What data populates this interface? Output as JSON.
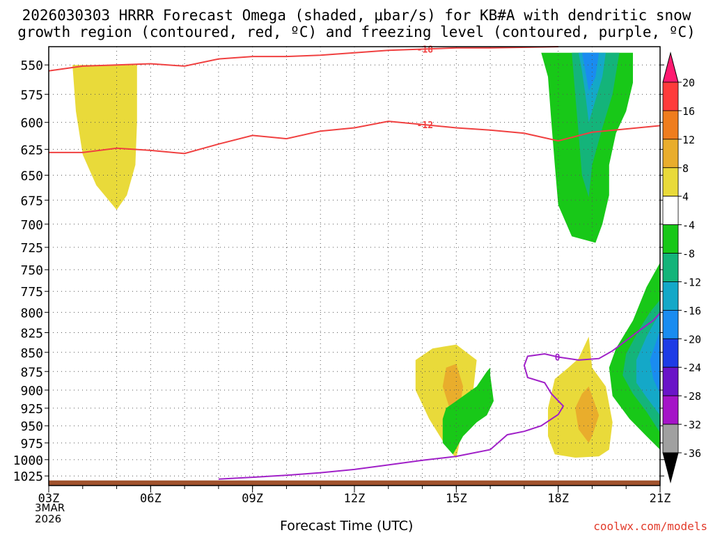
{
  "title_line1": "2026030303 HRRR Forecast Omega (shaded, μbar/s) for KB#A with dendritic snow",
  "title_line2": "growth region (contoured, red, ºC) and freezing level (contoured, purple, ºC)",
  "date_line1": "3MAR",
  "date_line2": "2026",
  "xlabel": "Forecast Time (UTC)",
  "credit": "coolwx.com/models",
  "chart_data": {
    "type": "heatmap",
    "x_unit": "hours after 03Z",
    "xlim": [
      0,
      18
    ],
    "ylim_hpa": [
      1040,
      535
    ],
    "y_ticks": [
      550,
      575,
      600,
      625,
      650,
      675,
      700,
      725,
      750,
      775,
      800,
      825,
      850,
      875,
      900,
      925,
      950,
      975,
      1000,
      1025
    ],
    "x_ticks": [
      {
        "x": 0,
        "label": "03Z"
      },
      {
        "x": 3,
        "label": "06Z"
      },
      {
        "x": 6,
        "label": "09Z"
      },
      {
        "x": 9,
        "label": "12Z"
      },
      {
        "x": 12,
        "label": "15Z"
      },
      {
        "x": 15,
        "label": "18Z"
      },
      {
        "x": 18,
        "label": "21Z"
      }
    ],
    "colorbar": {
      "levels": [
        20,
        16,
        12,
        8,
        4,
        -4,
        -8,
        -12,
        -16,
        -20,
        -24,
        -28,
        -32,
        -36
      ],
      "colors": [
        "#ff1a70",
        "#ff3b3b",
        "#ef7d1e",
        "#e9ad2c",
        "#e9da3a",
        "#ffffff",
        "#18c818",
        "#14b47a",
        "#14a8c8",
        "#1a8cf0",
        "#1e3ce6",
        "#6a14c8",
        "#a514c8",
        "#a0a0a0",
        "#000000"
      ]
    },
    "red_contours": [
      {
        "label": "-18",
        "points": [
          [
            0,
            555
          ],
          [
            1,
            551
          ],
          [
            2,
            550
          ],
          [
            3,
            549
          ],
          [
            4,
            551
          ],
          [
            5,
            545
          ],
          [
            6,
            543
          ],
          [
            7,
            543
          ],
          [
            8,
            542
          ],
          [
            9,
            540
          ],
          [
            10,
            538
          ],
          [
            11,
            537
          ],
          [
            12,
            536
          ],
          [
            13,
            536
          ],
          [
            15,
            535
          ]
        ]
      },
      {
        "label": "-12",
        "points": [
          [
            0,
            628
          ],
          [
            1,
            628
          ],
          [
            2,
            624
          ],
          [
            3,
            626
          ],
          [
            4,
            629
          ],
          [
            5,
            620
          ],
          [
            6,
            612
          ],
          [
            7,
            615
          ],
          [
            8,
            608
          ],
          [
            9,
            605
          ],
          [
            10,
            599
          ],
          [
            11,
            602
          ],
          [
            12,
            605
          ],
          [
            13,
            607
          ],
          [
            14,
            610
          ],
          [
            15,
            617
          ],
          [
            16,
            609
          ],
          [
            17,
            606
          ],
          [
            18,
            603
          ]
        ]
      }
    ],
    "freezing_level": {
      "label": "0",
      "points": [
        [
          5,
          1030
        ],
        [
          6,
          1027
        ],
        [
          7,
          1024
        ],
        [
          8,
          1020
        ],
        [
          9,
          1015
        ],
        [
          10,
          1008
        ],
        [
          11,
          1001
        ],
        [
          12,
          995
        ],
        [
          13,
          985
        ],
        [
          13.5,
          963
        ],
        [
          14,
          958
        ],
        [
          14.5,
          950
        ],
        [
          15,
          934
        ],
        [
          15.15,
          922
        ],
        [
          14.8,
          905
        ],
        [
          14.6,
          890
        ],
        [
          14.1,
          883
        ],
        [
          14.0,
          867
        ],
        [
          14.1,
          855
        ],
        [
          14.6,
          852
        ],
        [
          15.0,
          856
        ],
        [
          15.6,
          860
        ],
        [
          16.2,
          858
        ],
        [
          16.6,
          848
        ],
        [
          17.0,
          835
        ],
        [
          17.4,
          822
        ],
        [
          17.8,
          810
        ],
        [
          18,
          801
        ]
      ]
    },
    "omega_regions": [
      {
        "level": 4,
        "desc": "ascent 4-8 near 03Z-06Z aloft",
        "points": [
          [
            0.7,
            550
          ],
          [
            2.6,
            550
          ],
          [
            2.6,
            600
          ],
          [
            2.55,
            640
          ],
          [
            2.3,
            670
          ],
          [
            2.0,
            685
          ],
          [
            1.4,
            660
          ],
          [
            1.0,
            630
          ],
          [
            0.8,
            590
          ]
        ]
      },
      {
        "level": 4,
        "desc": "ascent 4-8 near 15Z low levels",
        "points": [
          [
            12.0,
            840
          ],
          [
            12.6,
            860
          ],
          [
            12.5,
            900
          ],
          [
            12.2,
            950
          ],
          [
            12.0,
            998
          ],
          [
            11.7,
            980
          ],
          [
            11.2,
            940
          ],
          [
            10.8,
            900
          ],
          [
            10.8,
            860
          ],
          [
            11.3,
            845
          ]
        ]
      },
      {
        "level": 8,
        "desc": "ascent 8-12 near 15Z",
        "points": [
          [
            12.0,
            865
          ],
          [
            12.2,
            895
          ],
          [
            12.1,
            925
          ],
          [
            12.0,
            940
          ],
          [
            11.8,
            925
          ],
          [
            11.6,
            895
          ],
          [
            11.7,
            870
          ]
        ]
      },
      {
        "level": 4,
        "desc": "ascent 4-8 near 18Z-20Z",
        "points": [
          [
            15.9,
            830
          ],
          [
            16.0,
            870
          ],
          [
            16.4,
            895
          ],
          [
            16.6,
            945
          ],
          [
            16.5,
            985
          ],
          [
            16.2,
            995
          ],
          [
            15.5,
            997
          ],
          [
            14.9,
            992
          ],
          [
            14.7,
            965
          ],
          [
            14.7,
            925
          ],
          [
            14.9,
            885
          ],
          [
            15.3,
            870
          ],
          [
            15.6,
            858
          ]
        ]
      },
      {
        "level": 8,
        "desc": "ascent 8-12 near 19Z",
        "points": [
          [
            15.9,
            895
          ],
          [
            16.2,
            935
          ],
          [
            16.0,
            965
          ],
          [
            15.9,
            975
          ],
          [
            15.6,
            955
          ],
          [
            15.5,
            925
          ],
          [
            15.7,
            905
          ]
        ]
      },
      {
        "level": -4,
        "desc": "sinking near 16Z-17Z",
        "points": [
          [
            13.0,
            870
          ],
          [
            13.0,
            880
          ],
          [
            13.1,
            915
          ],
          [
            12.9,
            935
          ],
          [
            12.6,
            945
          ],
          [
            12.2,
            965
          ],
          [
            11.9,
            992
          ],
          [
            11.6,
            975
          ],
          [
            11.6,
            940
          ],
          [
            11.7,
            925
          ],
          [
            12.0,
            915
          ],
          [
            12.6,
            895
          ],
          [
            12.9,
            875
          ]
        ]
      },
      {
        "level": -4,
        "desc": "sinking aloft near 19Z-20Z",
        "points": [
          [
            14.5,
            540
          ],
          [
            17.2,
            540
          ],
          [
            17.2,
            565
          ],
          [
            17.0,
            590
          ],
          [
            16.7,
            610
          ],
          [
            16.5,
            640
          ],
          [
            16.5,
            670
          ],
          [
            16.3,
            700
          ],
          [
            16.1,
            720
          ],
          [
            15.4,
            713
          ],
          [
            15.0,
            680
          ],
          [
            14.9,
            640
          ],
          [
            14.8,
            600
          ],
          [
            14.7,
            560
          ]
        ]
      },
      {
        "level": -8,
        "desc": "sinking -8 aloft",
        "points": [
          [
            15.4,
            540
          ],
          [
            16.8,
            540
          ],
          [
            16.6,
            575
          ],
          [
            16.3,
            605
          ],
          [
            16.0,
            640
          ],
          [
            15.9,
            672
          ],
          [
            15.7,
            650
          ],
          [
            15.6,
            610
          ],
          [
            15.5,
            575
          ]
        ]
      },
      {
        "level": -12,
        "desc": "sinking -12 aloft",
        "points": [
          [
            15.6,
            540
          ],
          [
            16.4,
            540
          ],
          [
            16.3,
            560
          ],
          [
            16.1,
            580
          ],
          [
            15.9,
            600
          ],
          [
            15.8,
            575
          ],
          [
            15.7,
            555
          ]
        ]
      },
      {
        "level": -16,
        "desc": "sinking -16 aloft",
        "points": [
          [
            15.7,
            540
          ],
          [
            16.2,
            540
          ],
          [
            16.1,
            560
          ],
          [
            15.9,
            572
          ],
          [
            15.8,
            555
          ]
        ]
      },
      {
        "level": -4,
        "desc": "sinking low levels near 21Z",
        "points": [
          [
            18.0,
            742
          ],
          [
            18.0,
            985
          ],
          [
            17.6,
            965
          ],
          [
            17.1,
            940
          ],
          [
            16.6,
            908
          ],
          [
            16.5,
            870
          ],
          [
            16.7,
            845
          ],
          [
            17.2,
            810
          ],
          [
            17.6,
            770
          ]
        ]
      },
      {
        "level": -8,
        "desc": "sinking -8 low levels",
        "points": [
          [
            18.0,
            785
          ],
          [
            18.0,
            960
          ],
          [
            17.6,
            930
          ],
          [
            17.2,
            905
          ],
          [
            16.9,
            880
          ],
          [
            17.0,
            852
          ],
          [
            17.4,
            820
          ],
          [
            17.7,
            800
          ]
        ]
      },
      {
        "level": -12,
        "desc": "sinking -12 low levels",
        "points": [
          [
            18.0,
            800
          ],
          [
            18.0,
            935
          ],
          [
            17.6,
            910
          ],
          [
            17.3,
            890
          ],
          [
            17.3,
            860
          ],
          [
            17.6,
            830
          ]
        ]
      },
      {
        "level": -16,
        "desc": "sinking -16 low levels",
        "points": [
          [
            18.0,
            822
          ],
          [
            18.0,
            905
          ],
          [
            17.8,
            885
          ],
          [
            17.7,
            860
          ]
        ]
      }
    ],
    "terrain_hpa": 1032
  }
}
